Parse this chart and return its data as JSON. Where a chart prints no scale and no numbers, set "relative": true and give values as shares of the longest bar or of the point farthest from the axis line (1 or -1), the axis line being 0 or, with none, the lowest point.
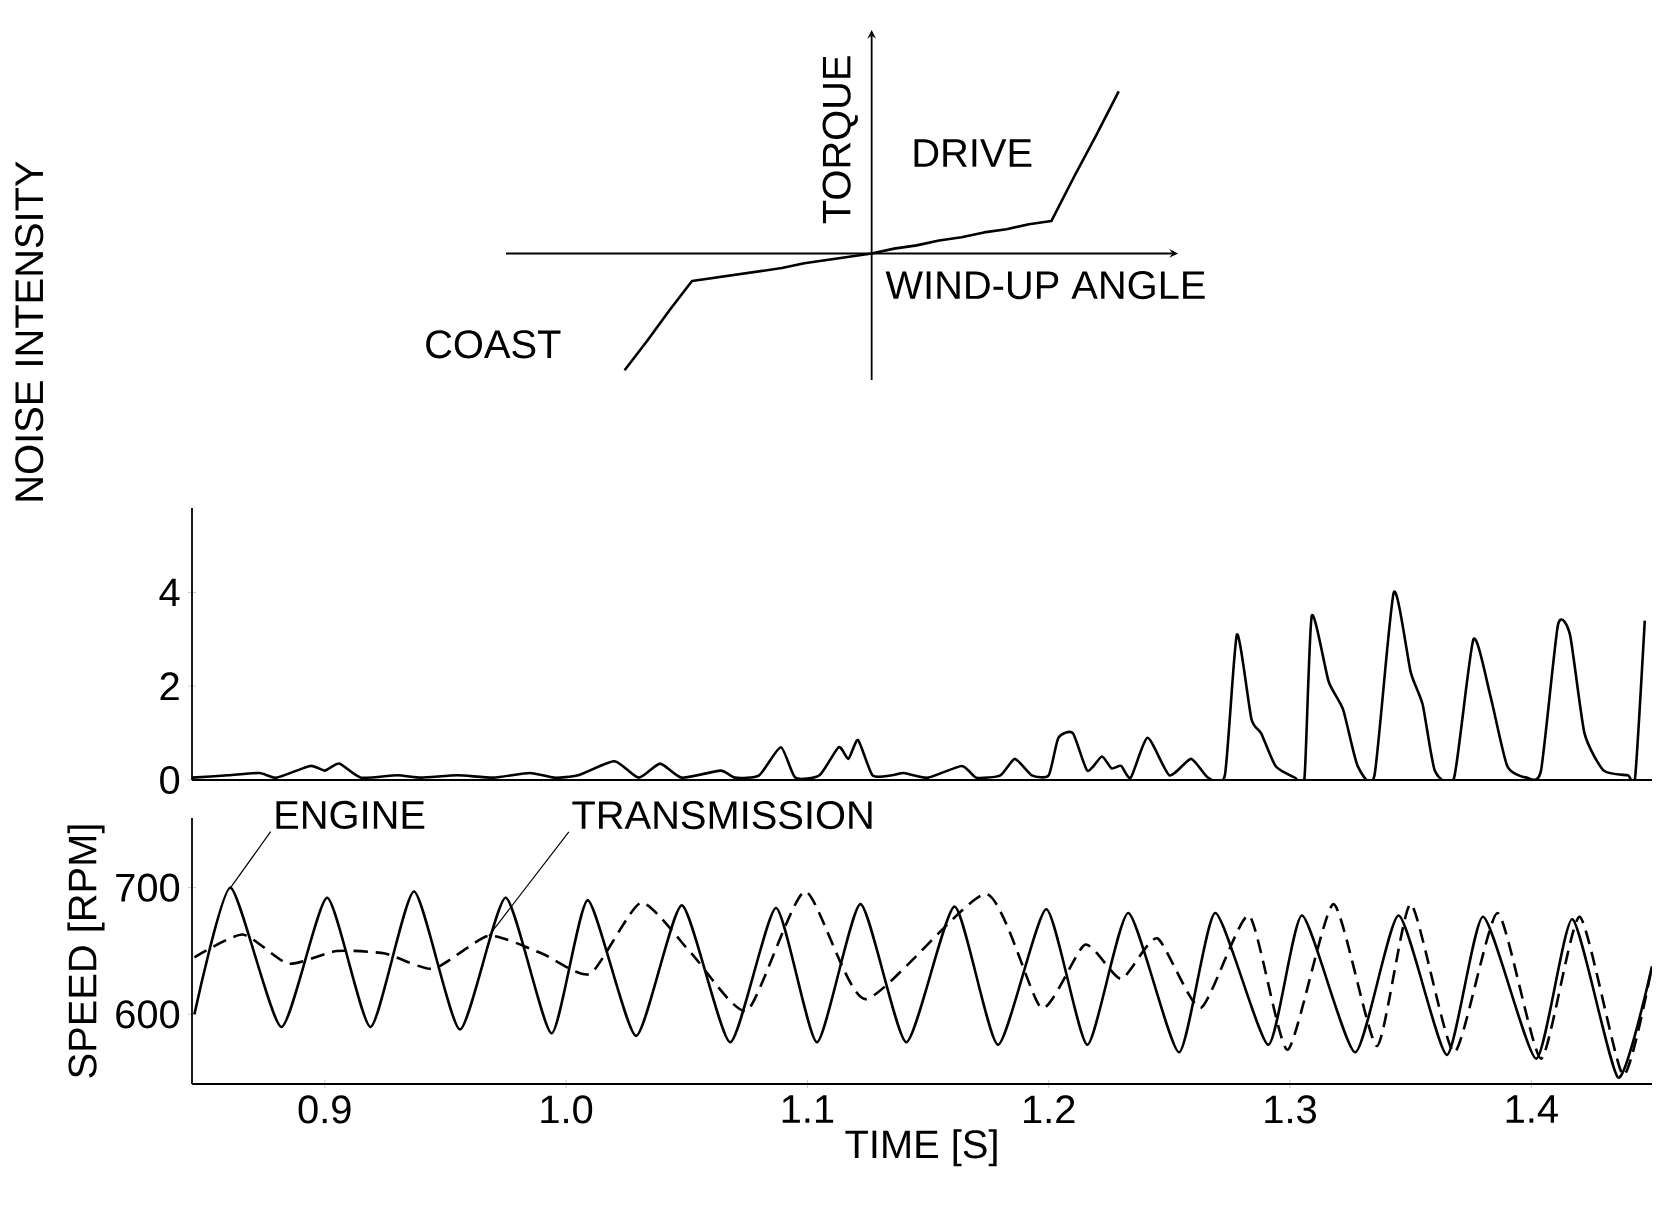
{
  "chart_data": [
    {
      "type": "line",
      "relative": true,
      "xlabel": "WIND-UP ANGLE",
      "ylabel": "TORQUE",
      "tick_labels": false,
      "categories": [
        null,
        null,
        null,
        null,
        null,
        null,
        null,
        null,
        null,
        null,
        null,
        null,
        null,
        null,
        null,
        null,
        null,
        null,
        null,
        null,
        null,
        null,
        null
      ],
      "series": [
        {
          "color": "#000000",
          "values": [
            -0.72,
            -0.54,
            -0.35,
            -0.17,
            -0.15,
            -0.13,
            -0.11,
            -0.09,
            -0.06,
            -0.04,
            -0.02,
            0,
            0.03,
            0.05,
            0.08,
            0.1,
            0.13,
            0.15,
            0.18,
            0.2,
            0.47,
            0.73,
            1
          ]
        }
      ],
      "annotations": [
        "COAST",
        "DRIVE"
      ]
    },
    {
      "type": "line",
      "ylabel": "NOISE INTENSITY",
      "xlim": [
        0.845,
        1.45
      ],
      "ylim": [
        0,
        5.8
      ],
      "yticks": [
        0,
        2,
        4
      ],
      "tick_labels": "y",
      "series": [
        {
          "color": "#000000",
          "x": [
            0.845,
            0.86,
            0.873,
            0.88,
            0.894,
            0.9,
            0.906,
            0.915,
            0.93,
            0.94,
            0.955,
            0.97,
            0.985,
            0.995,
            1.005,
            1.02,
            1.03,
            1.039,
            1.048,
            1.064,
            1.07,
            1.08,
            1.089,
            1.095,
            1.105,
            1.113,
            1.117,
            1.121,
            1.127,
            1.135,
            1.14,
            1.15,
            1.164,
            1.17,
            1.18,
            1.186,
            1.193,
            1.2,
            1.204,
            1.21,
            1.216,
            1.222,
            1.226,
            1.23,
            1.234,
            1.241,
            1.25,
            1.259,
            1.266,
            1.273,
            1.278,
            1.284,
            1.288,
            1.294,
            1.302,
            1.306,
            1.309,
            1.316,
            1.322,
            1.328,
            1.335,
            1.343,
            1.35,
            1.355,
            1.36,
            1.368,
            1.376,
            1.383,
            1.39,
            1.398,
            1.404,
            1.411,
            1.416,
            1.422,
            1.43,
            1.44,
            1.443,
            1.447
          ],
          "values": [
            0.05,
            0.1,
            0.15,
            0.05,
            0.3,
            0.2,
            0.35,
            0.05,
            0.1,
            0.05,
            0.1,
            0.05,
            0.15,
            0.05,
            0.1,
            0.4,
            0.05,
            0.35,
            0.05,
            0.2,
            0.05,
            0.1,
            0.7,
            0.05,
            0.1,
            0.7,
            0.45,
            0.85,
            0.1,
            0.1,
            0.15,
            0.05,
            0.3,
            0.05,
            0.1,
            0.45,
            0.1,
            0.1,
            0.9,
            1.0,
            0.2,
            0.5,
            0.25,
            0.3,
            0.05,
            0.9,
            0.1,
            0.45,
            0.05,
            0.1,
            3.1,
            1.3,
            1.0,
            0.3,
            0.05,
            0.05,
            3.5,
            2.1,
            1.5,
            0.3,
            0.1,
            4.0,
            2.3,
            1.6,
            0.2,
            0.05,
            3.0,
            1.8,
            0.3,
            0.05,
            0.2,
            3.3,
            3.1,
            1.0,
            0.2,
            0.1,
            0.05,
            3.4
          ]
        }
      ]
    },
    {
      "type": "line",
      "xlabel": "TIME [S]",
      "ylabel": "SPEED [RPM]",
      "xlim": [
        0.845,
        1.45
      ],
      "ylim": [
        545,
        755
      ],
      "xticks": [
        0.9,
        {
          "value": 1.0,
          "label": "1.0"
        },
        1.1,
        1.2,
        1.3,
        1.4
      ],
      "yticks": [
        600,
        700
      ],
      "series": [
        {
          "name": "ENGINE",
          "color": "#000000",
          "line_style": "solid",
          "x": [
            0.846,
            0.861,
            0.882,
            0.901,
            0.919,
            0.937,
            0.956,
            0.975,
            0.994,
            1.009,
            1.029,
            1.048,
            1.068,
            1.087,
            1.104,
            1.122,
            1.141,
            1.161,
            1.179,
            1.199,
            1.216,
            1.233,
            1.254,
            1.269,
            1.291,
            1.305,
            1.327,
            1.345,
            1.365,
            1.38,
            1.402,
            1.417,
            1.436,
            1.45
          ],
          "values": [
            600,
            700,
            590,
            692,
            590,
            697,
            588,
            692,
            585,
            690,
            583,
            686,
            578,
            684,
            578,
            687,
            578,
            685,
            576,
            683,
            576,
            680,
            570,
            680,
            576,
            678,
            570,
            678,
            568,
            677,
            565,
            675,
            550,
            638
          ]
        },
        {
          "name": "TRANSMISSION",
          "color": "#000000",
          "line_style": "dashed",
          "x": [
            0.846,
            0.866,
            0.885,
            0.905,
            0.925,
            0.945,
            0.968,
            0.99,
            1.01,
            1.031,
            1.052,
            1.075,
            1.099,
            1.124,
            1.174,
            1.197,
            1.215,
            1.23,
            1.245,
            1.263,
            1.283,
            1.299,
            1.318,
            1.336,
            1.35,
            1.368,
            1.386,
            1.404,
            1.42,
            1.438,
            1.45
          ],
          "values": [
            645,
            663,
            640,
            650,
            648,
            636,
            662,
            648,
            632,
            688,
            648,
            603,
            697,
            612,
            695,
            605,
            655,
            628,
            660,
            605,
            678,
            572,
            687,
            575,
            687,
            570,
            680,
            565,
            677,
            552,
            638
          ]
        }
      ]
    }
  ]
}
